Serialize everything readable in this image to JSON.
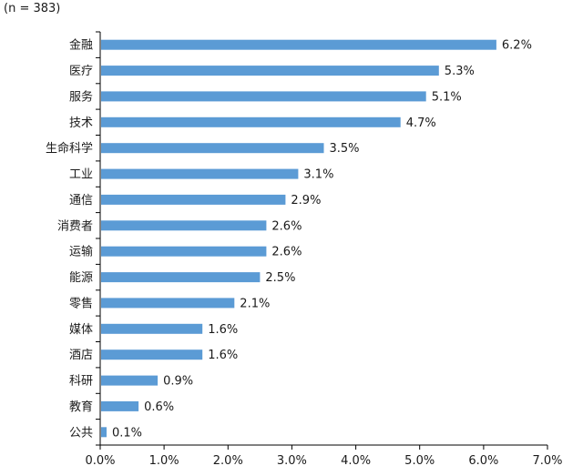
{
  "note": "(n = 383)",
  "chart_data": {
    "type": "bar",
    "orientation": "horizontal",
    "categories": [
      "金融",
      "医疗",
      "服务",
      "技术",
      "生命科学",
      "工业",
      "通信",
      "消费者",
      "运输",
      "能源",
      "零售",
      "媒体",
      "酒店",
      "科研",
      "教育",
      "公共"
    ],
    "values": [
      6.2,
      5.3,
      5.1,
      4.7,
      3.5,
      3.1,
      2.9,
      2.6,
      2.6,
      2.5,
      2.1,
      1.6,
      1.6,
      0.9,
      0.6,
      0.1
    ],
    "value_labels": [
      "6.2%",
      "5.3%",
      "5.1%",
      "4.7%",
      "3.5%",
      "3.1%",
      "2.9%",
      "2.6%",
      "2.6%",
      "2.5%",
      "2.1%",
      "1.6%",
      "1.6%",
      "0.9%",
      "0.6%",
      "0.1%"
    ],
    "xticks": [
      "0.0%",
      "1.0%",
      "2.0%",
      "3.0%",
      "4.0%",
      "5.0%",
      "6.0%",
      "7.0%"
    ],
    "xlim": [
      0,
      7
    ],
    "grid": false,
    "legend": "none",
    "bar_color": "#5b9bd5",
    "axis_color": "#000000"
  }
}
